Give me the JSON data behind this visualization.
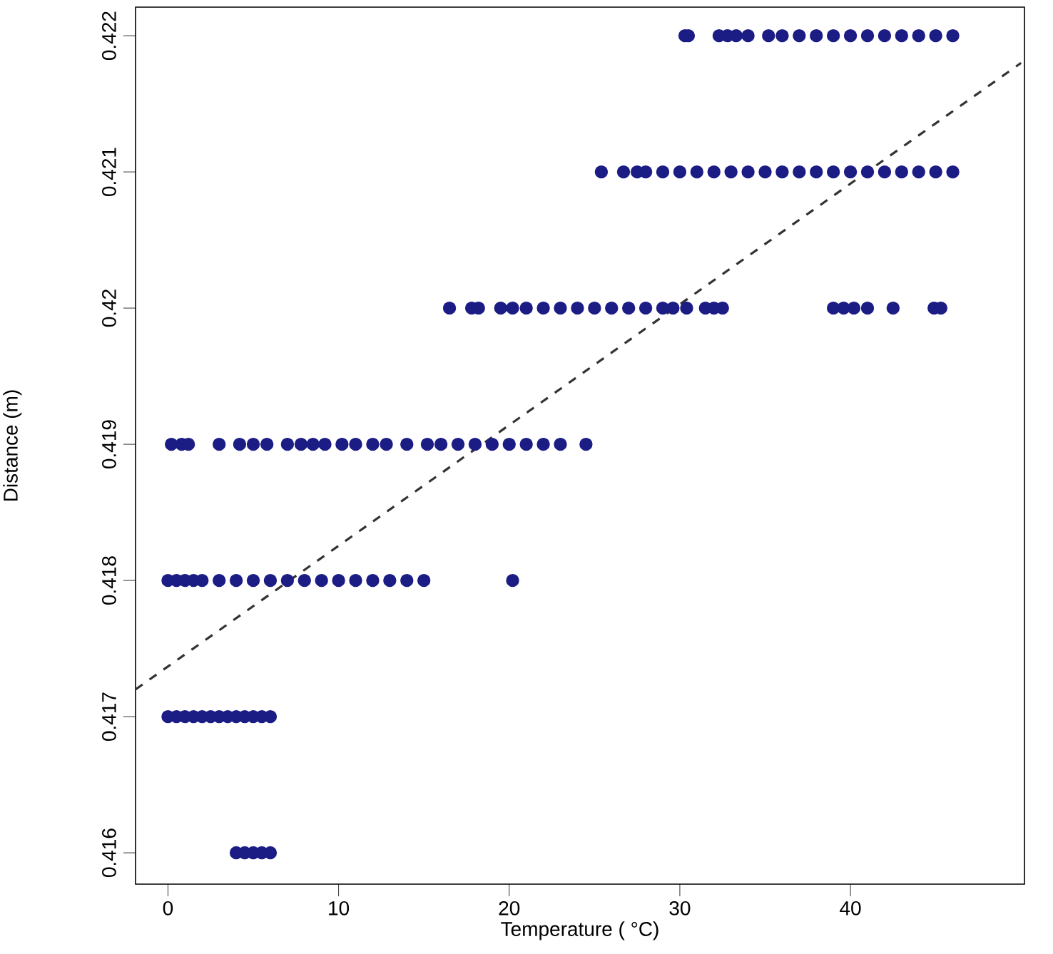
{
  "chart_data": {
    "type": "scatter",
    "xlabel": "Temperature ( °C)",
    "ylabel": "Distance (m)",
    "xlim": [
      -1.9,
      50.2
    ],
    "ylim": [
      0.41577,
      0.42221
    ],
    "xticks": [
      0,
      10,
      20,
      30,
      40
    ],
    "yticks": [
      0.416,
      0.417,
      0.418,
      0.419,
      0.42,
      0.421,
      0.422
    ],
    "grid": false,
    "series": [
      {
        "color": "#1c1c85",
        "x": [
          4.0,
          4.5,
          5.0,
          5.5,
          6.0,
          0,
          0.5,
          1,
          1.5,
          2,
          2.5,
          3,
          3.5,
          4,
          4.5,
          5,
          5.5,
          6,
          0,
          0.5,
          1,
          1.5,
          2,
          3,
          4,
          5,
          6,
          7,
          8,
          9,
          10,
          11,
          12,
          13,
          14,
          15,
          20.2,
          0.2,
          0.8,
          1.2,
          3,
          4.2,
          5,
          5.8,
          7,
          7.8,
          8.5,
          9.2,
          10.2,
          11,
          12,
          12.8,
          14,
          15.2,
          16,
          17,
          18,
          19,
          20,
          21,
          22,
          23,
          24.5,
          16.5,
          17.8,
          18.2,
          19.5,
          20.2,
          21,
          22,
          23,
          24,
          25,
          26,
          27,
          28,
          29,
          29.6,
          30.4,
          31.5,
          32,
          32.5,
          39,
          39.6,
          40.2,
          41,
          42.5,
          44.9,
          45.3,
          25.4,
          26.7,
          27.5,
          28,
          29,
          30,
          31,
          32,
          33,
          34,
          35,
          36,
          37,
          38,
          39,
          40,
          41,
          42,
          43,
          44,
          45,
          46,
          30.3,
          30.5,
          32.3,
          32.8,
          33.3,
          34,
          35.2,
          36,
          37,
          38,
          39,
          40,
          41,
          42,
          43,
          44,
          45,
          46
        ],
        "values": [
          0.416,
          0.416,
          0.416,
          0.416,
          0.416,
          0.417,
          0.417,
          0.417,
          0.417,
          0.417,
          0.417,
          0.417,
          0.417,
          0.417,
          0.417,
          0.417,
          0.417,
          0.417,
          0.418,
          0.418,
          0.418,
          0.418,
          0.418,
          0.418,
          0.418,
          0.418,
          0.418,
          0.418,
          0.418,
          0.418,
          0.418,
          0.418,
          0.418,
          0.418,
          0.418,
          0.418,
          0.418,
          0.419,
          0.419,
          0.419,
          0.419,
          0.419,
          0.419,
          0.419,
          0.419,
          0.419,
          0.419,
          0.419,
          0.419,
          0.419,
          0.419,
          0.419,
          0.419,
          0.419,
          0.419,
          0.419,
          0.419,
          0.419,
          0.419,
          0.419,
          0.419,
          0.419,
          0.419,
          0.42,
          0.42,
          0.42,
          0.42,
          0.42,
          0.42,
          0.42,
          0.42,
          0.42,
          0.42,
          0.42,
          0.42,
          0.42,
          0.42,
          0.42,
          0.42,
          0.42,
          0.42,
          0.42,
          0.42,
          0.42,
          0.42,
          0.42,
          0.42,
          0.42,
          0.42,
          0.421,
          0.421,
          0.421,
          0.421,
          0.421,
          0.421,
          0.421,
          0.421,
          0.421,
          0.421,
          0.421,
          0.421,
          0.421,
          0.421,
          0.421,
          0.421,
          0.421,
          0.421,
          0.421,
          0.421,
          0.421,
          0.421,
          0.422,
          0.422,
          0.422,
          0.422,
          0.422,
          0.422,
          0.422,
          0.422,
          0.422,
          0.422,
          0.422,
          0.422,
          0.422,
          0.422,
          0.422,
          0.422,
          0.422,
          0.422
        ]
      },
      {
        "type": "line",
        "color": "#333333",
        "line_style": "dashed",
        "x": [
          -1.9,
          50.0
        ],
        "values": [
          0.4172,
          0.4218
        ]
      }
    ]
  }
}
